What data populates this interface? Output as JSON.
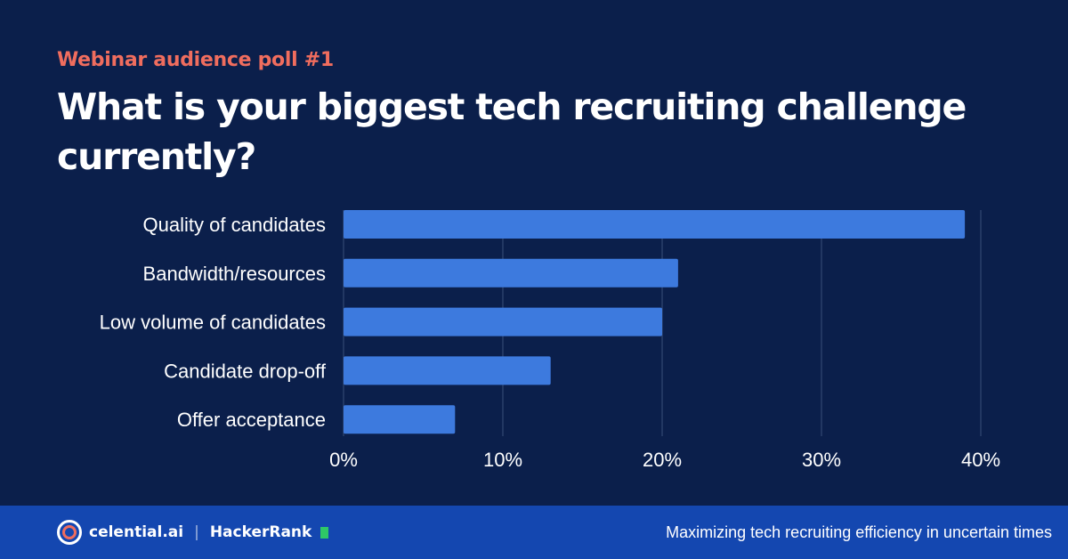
{
  "subtitle": "Webinar audience poll #1",
  "title": "What is your biggest tech recruiting challenge currently?",
  "chart_data": {
    "type": "bar",
    "orientation": "horizontal",
    "categories": [
      "Quality of candidates",
      "Bandwidth/resources",
      "Low volume of candidates",
      "Candidate drop-off",
      "Offer acceptance"
    ],
    "values": [
      39,
      21,
      20,
      13,
      7
    ],
    "xlim": [
      0,
      40
    ],
    "xticks": [
      "0%",
      "10%",
      "20%",
      "30%",
      "40%"
    ],
    "grid": true,
    "bar_color": "#3d7ade"
  },
  "footer": {
    "brand1": "celential.ai",
    "separator": "|",
    "brand2": "HackerRank",
    "tagline": "Maximizing tech recruiting efficiency in uncertain times"
  }
}
